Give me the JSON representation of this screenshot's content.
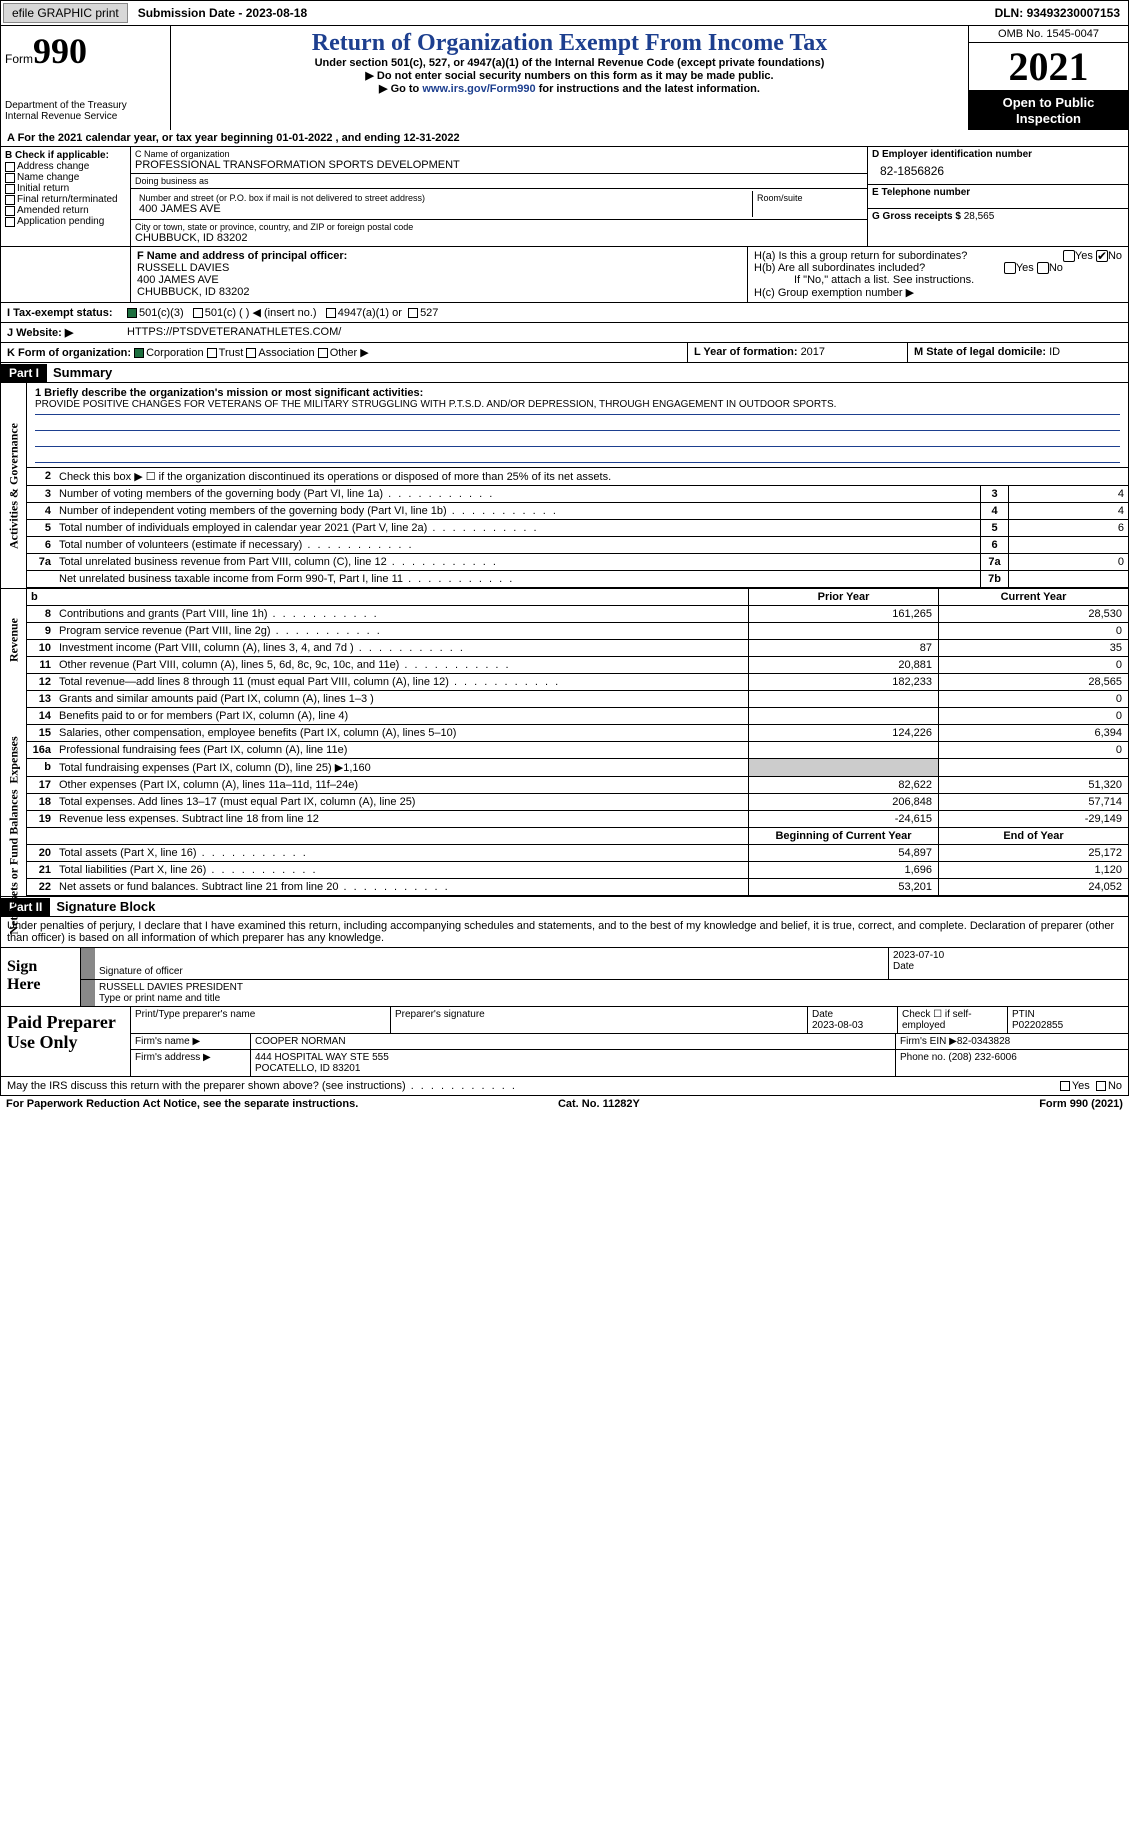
{
  "topbar": {
    "efile": "efile GRAPHIC print",
    "submission_label": "Submission Date - ",
    "submission_date": "2023-08-18",
    "dln_label": "DLN: ",
    "dln": "93493230007153"
  },
  "header": {
    "form_label": "Form",
    "form_num": "990",
    "dept": "Department of the Treasury\nInternal Revenue Service",
    "title": "Return of Organization Exempt From Income Tax",
    "sub1": "Under section 501(c), 527, or 4947(a)(1) of the Internal Revenue Code (except private foundations)",
    "sub2": "▶ Do not enter social security numbers on this form as it may be made public.",
    "sub3_pre": "▶ Go to ",
    "sub3_link": "www.irs.gov/Form990",
    "sub3_post": " for instructions and the latest information.",
    "omb": "OMB No. 1545-0047",
    "year": "2021",
    "open": "Open to Public Inspection"
  },
  "lineA": {
    "pre": "A For the 2021 calendar year, or tax year beginning ",
    "begin": "01-01-2022",
    "mid": "  , and ending ",
    "end": "12-31-2022"
  },
  "colB": {
    "label": "B Check if applicable:",
    "items": [
      "Address change",
      "Name change",
      "Initial return",
      "Final return/terminated",
      "Amended return",
      "Application pending"
    ]
  },
  "colC": {
    "name_hint": "C Name of organization",
    "name": "PROFESSIONAL TRANSFORMATION SPORTS DEVELOPMENT",
    "dba_hint": "Doing business as",
    "dba": "",
    "street_hint": "Number and street (or P.O. box if mail is not delivered to street address)",
    "street": "400 JAMES AVE",
    "room_hint": "Room/suite",
    "city_hint": "City or town, state or province, country, and ZIP or foreign postal code",
    "city": "CHUBBUCK, ID  83202"
  },
  "colD": {
    "ein_hint": "D Employer identification number",
    "ein": "82-1856826",
    "phone_hint": "E Telephone number",
    "phone": "",
    "gross_hint": "G Gross receipts $ ",
    "gross": "28,565"
  },
  "rowF": {
    "hint": "F Name and address of principal officer:",
    "name": "RUSSELL DAVIES",
    "street": "400 JAMES AVE",
    "city": "CHUBBUCK, ID  83202",
    "Ha": "H(a)  Is this a group return for subordinates?",
    "Hb": "H(b)  Are all subordinates included?",
    "Hnote": "If \"No,\" attach a list. See instructions.",
    "Hc": "H(c)  Group exemption number ▶",
    "yes": "Yes",
    "no": "No"
  },
  "rowI": {
    "label": "I   Tax-exempt status:",
    "o1": "501(c)(3)",
    "o2": "501(c) (   ) ◀ (insert no.)",
    "o3": "4947(a)(1) or",
    "o4": "527"
  },
  "rowJ": {
    "label": "J   Website: ▶",
    "val": "HTTPS://PTSDVETERANATHLETES.COM/"
  },
  "rowK": {
    "k_label": "K Form of organization:",
    "k_opts": [
      "Corporation",
      "Trust",
      "Association",
      "Other ▶"
    ],
    "l_label": "L Year of formation: ",
    "l_val": "2017",
    "m_label": "M State of legal domicile: ",
    "m_val": "ID"
  },
  "partI": {
    "label": "Part I",
    "title": "Summary"
  },
  "mission": {
    "q": "1   Briefly describe the organization's mission or most significant activities:",
    "text": "PROVIDE POSITIVE CHANGES FOR VETERANS OF THE MILITARY STRUGGLING WITH P.T.S.D. AND/OR DEPRESSION, THROUGH ENGAGEMENT IN OUTDOOR SPORTS."
  },
  "gov": {
    "tab": "Activities & Governance",
    "l2": "Check this box ▶ ☐ if the organization discontinued its operations or disposed of more than 25% of its net assets.",
    "rows": [
      {
        "n": "3",
        "d": "Number of voting members of the governing body (Part VI, line 1a)",
        "b": "3",
        "v": "4"
      },
      {
        "n": "4",
        "d": "Number of independent voting members of the governing body (Part VI, line 1b)",
        "b": "4",
        "v": "4"
      },
      {
        "n": "5",
        "d": "Total number of individuals employed in calendar year 2021 (Part V, line 2a)",
        "b": "5",
        "v": "6"
      },
      {
        "n": "6",
        "d": "Total number of volunteers (estimate if necessary)",
        "b": "6",
        "v": ""
      },
      {
        "n": "7a",
        "d": "Total unrelated business revenue from Part VIII, column (C), line 12",
        "b": "7a",
        "v": "0"
      },
      {
        "n": "",
        "d": "Net unrelated business taxable income from Form 990-T, Part I, line 11",
        "b": "7b",
        "v": ""
      }
    ]
  },
  "rev": {
    "tab": "Revenue",
    "h1": "Prior Year",
    "h2": "Current Year",
    "rows": [
      {
        "n": "8",
        "d": "Contributions and grants (Part VIII, line 1h)",
        "c1": "161,265",
        "c2": "28,530"
      },
      {
        "n": "9",
        "d": "Program service revenue (Part VIII, line 2g)",
        "c1": "",
        "c2": "0"
      },
      {
        "n": "10",
        "d": "Investment income (Part VIII, column (A), lines 3, 4, and 7d )",
        "c1": "87",
        "c2": "35"
      },
      {
        "n": "11",
        "d": "Other revenue (Part VIII, column (A), lines 5, 6d, 8c, 9c, 10c, and 11e)",
        "c1": "20,881",
        "c2": "0"
      },
      {
        "n": "12",
        "d": "Total revenue—add lines 8 through 11 (must equal Part VIII, column (A), line 12)",
        "c1": "182,233",
        "c2": "28,565"
      }
    ]
  },
  "exp": {
    "tab": "Expenses",
    "rows": [
      {
        "n": "13",
        "d": "Grants and similar amounts paid (Part IX, column (A), lines 1–3 )",
        "c1": "",
        "c2": "0"
      },
      {
        "n": "14",
        "d": "Benefits paid to or for members (Part IX, column (A), line 4)",
        "c1": "",
        "c2": "0"
      },
      {
        "n": "15",
        "d": "Salaries, other compensation, employee benefits (Part IX, column (A), lines 5–10)",
        "c1": "124,226",
        "c2": "6,394"
      },
      {
        "n": "16a",
        "d": "Professional fundraising fees (Part IX, column (A), line 11e)",
        "c1": "",
        "c2": "0"
      },
      {
        "n": "b",
        "d": "Total fundraising expenses (Part IX, column (D), line 25) ▶1,160",
        "c1": "",
        "c2": "",
        "shade": true
      },
      {
        "n": "17",
        "d": "Other expenses (Part IX, column (A), lines 11a–11d, 11f–24e)",
        "c1": "82,622",
        "c2": "51,320"
      },
      {
        "n": "18",
        "d": "Total expenses. Add lines 13–17 (must equal Part IX, column (A), line 25)",
        "c1": "206,848",
        "c2": "57,714"
      },
      {
        "n": "19",
        "d": "Revenue less expenses. Subtract line 18 from line 12",
        "c1": "-24,615",
        "c2": "-29,149"
      }
    ]
  },
  "net": {
    "tab": "Net Assets or Fund Balances",
    "h1": "Beginning of Current Year",
    "h2": "End of Year",
    "rows": [
      {
        "n": "20",
        "d": "Total assets (Part X, line 16)",
        "c1": "54,897",
        "c2": "25,172"
      },
      {
        "n": "21",
        "d": "Total liabilities (Part X, line 26)",
        "c1": "1,696",
        "c2": "1,120"
      },
      {
        "n": "22",
        "d": "Net assets or fund balances. Subtract line 21 from line 20",
        "c1": "53,201",
        "c2": "24,052"
      }
    ]
  },
  "partII": {
    "label": "Part II",
    "title": "Signature Block"
  },
  "sig": {
    "intro": "Under penalties of perjury, I declare that I have examined this return, including accompanying schedules and statements, and to the best of my knowledge and belief, it is true, correct, and complete. Declaration of preparer (other than officer) is based on all information of which preparer has any knowledge.",
    "left": "Sign Here",
    "sig_hint": "Signature of officer",
    "date": "2023-07-10",
    "date_hint": "Date",
    "name": "RUSSELL DAVIES  PRESIDENT",
    "name_hint": "Type or print name and title"
  },
  "paid": {
    "left": "Paid Preparer Use Only",
    "h_name": "Print/Type preparer's name",
    "h_sig": "Preparer's signature",
    "h_date": "Date",
    "date": "2023-08-03",
    "h_check": "Check ☐ if self-employed",
    "h_ptin": "PTIN",
    "ptin": "P02202855",
    "firm_l": "Firm's name    ▶",
    "firm": "COOPER NORMAN",
    "ein_l": "Firm's EIN ▶",
    "ein": "82-0343828",
    "addr_l": "Firm's address ▶",
    "addr1": "444 HOSPITAL WAY STE 555",
    "addr2": "POCATELLO, ID  83201",
    "phone_l": "Phone no. ",
    "phone": "(208) 232-6006"
  },
  "discuss": {
    "q": "May the IRS discuss this return with the preparer shown above? (see instructions)",
    "yes": "Yes",
    "no": "No"
  },
  "footer": {
    "l": "For Paperwork Reduction Act Notice, see the separate instructions.",
    "m": "Cat. No. 11282Y",
    "r": "Form 990 (2021)"
  }
}
